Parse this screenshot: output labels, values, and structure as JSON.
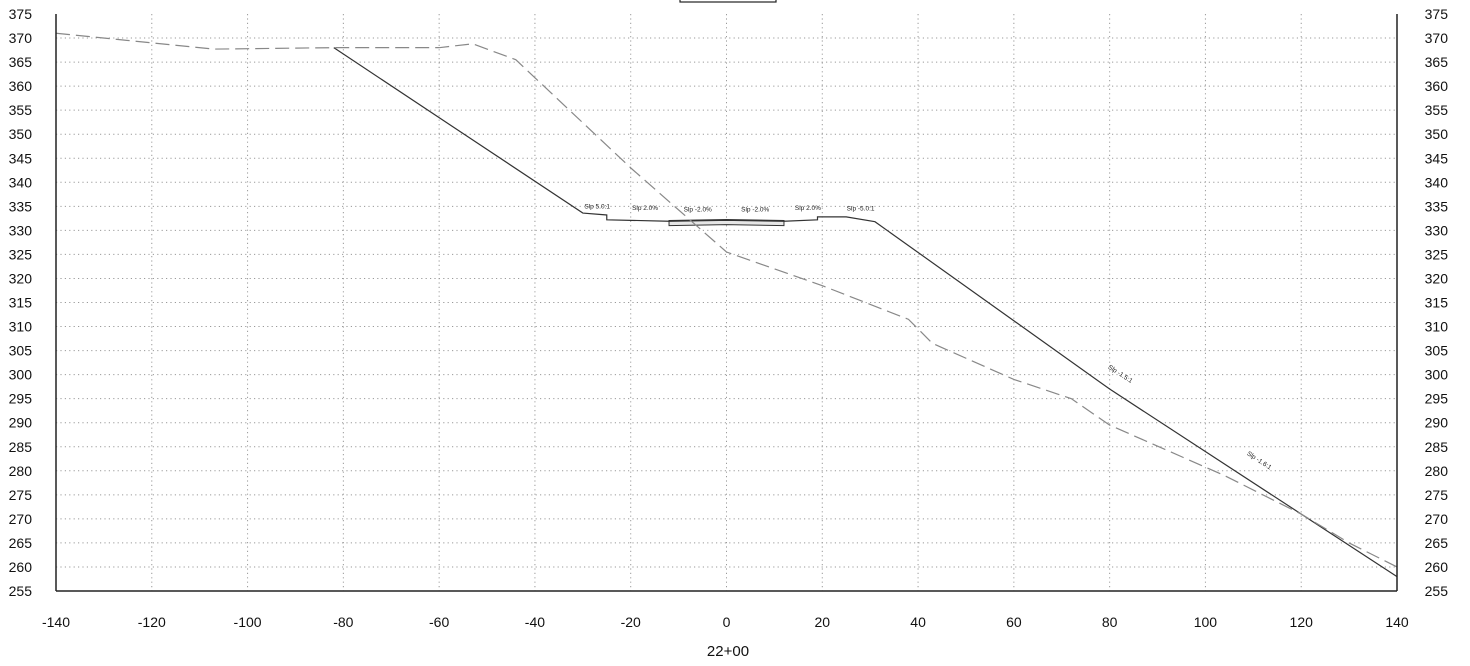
{
  "chart_data": {
    "type": "line",
    "xlabel": "22+00",
    "xlim": [
      -140,
      140
    ],
    "ylim": [
      255,
      375
    ],
    "x_ticks": [
      -140,
      -120,
      -100,
      -80,
      -60,
      -40,
      -20,
      0,
      20,
      40,
      60,
      80,
      100,
      120,
      140
    ],
    "y_ticks": [
      255,
      260,
      265,
      270,
      275,
      280,
      285,
      290,
      295,
      300,
      305,
      310,
      315,
      320,
      325,
      330,
      335,
      340,
      345,
      350,
      355,
      360,
      365,
      370,
      375
    ],
    "grid": true,
    "series": [
      {
        "style": "solid",
        "color": "#333333",
        "points": [
          [
            -82,
            368
          ],
          [
            -30,
            333.6
          ],
          [
            -25,
            333.2
          ],
          [
            -25,
            332.2
          ],
          [
            -12,
            331.9
          ],
          [
            0,
            332.1
          ],
          [
            12,
            331.9
          ],
          [
            19,
            332.2
          ],
          [
            19,
            332.8
          ],
          [
            25,
            332.8
          ],
          [
            31,
            331.8
          ],
          [
            80,
            297
          ],
          [
            140,
            258
          ]
        ]
      },
      {
        "style": "dashed",
        "color": "#888888",
        "points": [
          [
            -140,
            371
          ],
          [
            -107,
            367.7
          ],
          [
            -82,
            368
          ],
          [
            -60,
            368
          ],
          [
            -53,
            368.8
          ],
          [
            -44,
            365.5
          ],
          [
            -20,
            343
          ],
          [
            0,
            325.5
          ],
          [
            20,
            318.5
          ],
          [
            38,
            311.5
          ],
          [
            43,
            306.5
          ],
          [
            60,
            299
          ],
          [
            72,
            295
          ],
          [
            80,
            289.5
          ],
          [
            104,
            279
          ],
          [
            120,
            271
          ],
          [
            130,
            265
          ],
          [
            140,
            260
          ]
        ]
      }
    ],
    "annotations": [
      {
        "x": -27,
        "y": 334.6,
        "text": "Slp 5.0:1"
      },
      {
        "x": -17,
        "y": 334.2,
        "text": "Slp 2.0%"
      },
      {
        "x": -6,
        "y": 333.9,
        "text": "Slp -2.0%"
      },
      {
        "x": 6,
        "y": 333.9,
        "text": "Slp -2.0%"
      },
      {
        "x": 17,
        "y": 334.2,
        "text": "Slp 2.0%"
      },
      {
        "x": 28,
        "y": 334.1,
        "text": "Slp -5.0:1"
      },
      {
        "x": 82,
        "y": 299.8,
        "text": "Slp -1.5:1"
      },
      {
        "x": 111,
        "y": 281.8,
        "text": "Slp -1.6:1"
      }
    ]
  }
}
